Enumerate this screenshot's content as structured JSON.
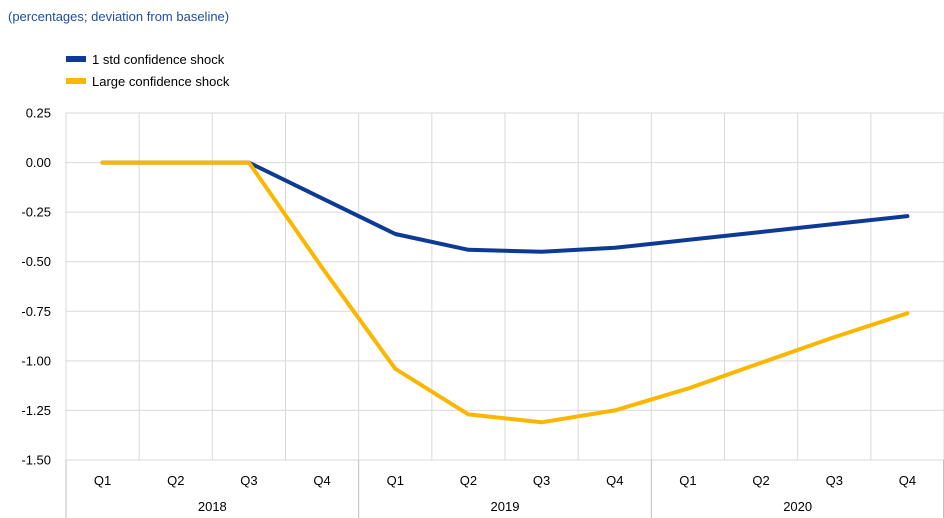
{
  "subtitle": "(percentages; deviation from baseline)",
  "colors": {
    "series1": "#0d3a94",
    "series2": "#fbb600",
    "grid": "#d9d9d9",
    "axis": "#bfbfbf"
  },
  "legend": [
    {
      "label": "1 std confidence shock",
      "color": "#0d3a94"
    },
    {
      "label": "Large confidence shock",
      "color": "#fbb600"
    }
  ],
  "chart_data": {
    "type": "line",
    "title": "",
    "subtitle": "(percentages; deviation from baseline)",
    "categories": [
      "Q1",
      "Q2",
      "Q3",
      "Q4",
      "Q1",
      "Q2",
      "Q3",
      "Q4",
      "Q1",
      "Q2",
      "Q3",
      "Q4"
    ],
    "year_groups": [
      {
        "label": "2018",
        "span": 4
      },
      {
        "label": "2019",
        "span": 4
      },
      {
        "label": "2020",
        "span": 4
      }
    ],
    "y_ticks": [
      0.25,
      0.0,
      -0.25,
      -0.5,
      -0.75,
      -1.0,
      -1.25,
      -1.5
    ],
    "y_tick_labels": [
      "0.25",
      "0.00",
      "-0.25",
      "-0.50",
      "-0.75",
      "-1.00",
      "-1.25",
      "-1.50"
    ],
    "ylim": [
      -1.5,
      0.25
    ],
    "grid": true,
    "legend_position": "top-left",
    "series": [
      {
        "name": "1 std confidence shock",
        "color": "#0d3a94",
        "values": [
          0.0,
          0.0,
          0.0,
          -0.18,
          -0.36,
          -0.44,
          -0.45,
          -0.43,
          -0.39,
          -0.35,
          -0.31,
          -0.27
        ]
      },
      {
        "name": "Large confidence shock",
        "color": "#fbb600",
        "values": [
          0.0,
          0.0,
          0.0,
          -0.53,
          -1.04,
          -1.27,
          -1.31,
          -1.25,
          -1.14,
          -1.01,
          -0.88,
          -0.76
        ]
      }
    ]
  }
}
